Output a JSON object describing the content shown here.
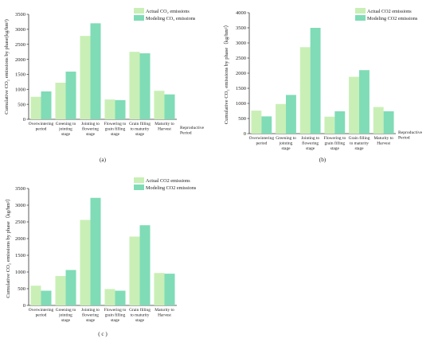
{
  "colors": {
    "actual": "#c9efb6",
    "modeling": "#7fdcb6",
    "axis": "#333333"
  },
  "chart_data": [
    {
      "type": "bar",
      "panel_label": "(a)",
      "ylabel": "Cumulative CO₂ emissions by phase(kg/hm²)",
      "xlabel": "Reproductive Period",
      "ylim": [
        0,
        3500
      ],
      "yticks": [
        0,
        500,
        1000,
        1500,
        2000,
        2500,
        3000,
        3500
      ],
      "categories": [
        [
          "Overwintering",
          "period"
        ],
        [
          "Greening to",
          "jointing",
          "stage"
        ],
        [
          "Jointing to",
          "flowering",
          "stage"
        ],
        [
          "Flowering to",
          "grain filling",
          "stage"
        ],
        [
          "Grain filling",
          "to maturity",
          "stage"
        ],
        [
          "Maturity to",
          "Harvest"
        ]
      ],
      "series": [
        {
          "name": "Actual CO₂ emissions",
          "values": [
            750,
            1220,
            2780,
            660,
            2250,
            950
          ]
        },
        {
          "name": "Modeling CO₂ emissions",
          "values": [
            930,
            1590,
            3200,
            640,
            2200,
            830
          ]
        }
      ],
      "legend": "top-right",
      "grid": false
    },
    {
      "type": "bar",
      "panel_label": "(b)",
      "ylabel": "Cumulative CO₂ emissions by phase（kg/hm²）",
      "xlabel": "Reproductive Period",
      "ylim": [
        0,
        4000
      ],
      "yticks": [
        0,
        500,
        1000,
        1500,
        2000,
        2500,
        3000,
        3500,
        4000
      ],
      "categories": [
        [
          "Overwintering",
          "period"
        ],
        [
          "Greening to",
          "jointing",
          "stage"
        ],
        [
          "Jointing to",
          "flowering",
          "stage"
        ],
        [
          "Flowering to",
          "grain filling",
          "stage"
        ],
        [
          "Grain filling",
          "to maturity",
          "stage"
        ],
        [
          "Maturity to",
          "Harvest"
        ]
      ],
      "series": [
        {
          "name": "Actual  CO2 emissions",
          "values": [
            760,
            980,
            2860,
            560,
            1880,
            880
          ]
        },
        {
          "name": "Modeling CO2 emissions",
          "values": [
            570,
            1280,
            3500,
            740,
            2100,
            740
          ]
        }
      ],
      "legend": "top-right",
      "grid": false
    },
    {
      "type": "bar",
      "panel_label": "( c )",
      "ylabel": "Cumulative CO₂ emissions by phase（kg/hm²）",
      "xlabel": "",
      "ylim": [
        0,
        3500
      ],
      "yticks": [
        0,
        500,
        1000,
        1500,
        2000,
        2500,
        3000,
        3500
      ],
      "categories": [
        [
          "Overwintering",
          "period"
        ],
        [
          "Greening to",
          "jointing",
          "stage"
        ],
        [
          "Jointing to",
          "flowering",
          "stage"
        ],
        [
          "Flowering to",
          "grain filling",
          "stage"
        ],
        [
          "Grain filling",
          "to maturity",
          "stage"
        ],
        [
          "Maturity to",
          "Harvest"
        ]
      ],
      "series": [
        {
          "name": "Actual CO2 emissions",
          "values": [
            590,
            880,
            2560,
            490,
            2060,
            970
          ]
        },
        {
          "name": "Modeling CO2 emissions",
          "values": [
            440,
            1060,
            3220,
            440,
            2400,
            950
          ]
        }
      ],
      "legend": "top-right",
      "grid": false
    }
  ]
}
